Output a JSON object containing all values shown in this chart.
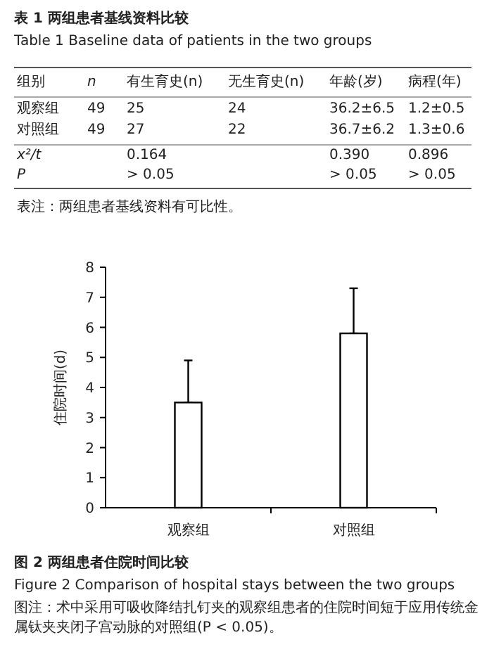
{
  "chart_data": [
    {
      "type": "other",
      "title": "表 1  两组患者基线资料比较",
      "subtitle": "Table 1  Baseline data of patients in the two groups",
      "annotations": [
        "组别",
        "n",
        "有生育史(n)",
        "无生育史(n)",
        "年龄(岁)",
        "病程(年)",
        "观察组",
        "49",
        "25",
        "24",
        "36.2±6.5",
        "1.2±0.5",
        "对照组",
        "49",
        "27",
        "22",
        "36.7±6.2",
        "1.3±0.6",
        "x²/t",
        "0.164",
        "0.390",
        "0.896",
        "P",
        "> 0.05",
        "> 0.05",
        "> 0.05",
        "表注：两组患者基线资料有可比性。"
      ]
    },
    {
      "type": "bar",
      "title": "图 2  两组患者住院时间比较",
      "subtitle": "Figure 2  Comparison of hospital stays between the two groups",
      "ylabel": "住院时间(d)",
      "categories": [
        "观察组",
        "对照组"
      ],
      "series": [
        {
          "color": "#ffffff",
          "values": [
            3.5,
            5.8
          ],
          "errors": [
            [
              3.5,
              4.9
            ],
            [
              5.8,
              7.3
            ]
          ]
        }
      ],
      "ylim": [
        0,
        8
      ],
      "yticks": [
        0,
        1,
        2,
        3,
        4,
        5,
        6,
        7,
        8
      ],
      "annotations": [
        "图注：术中采用可吸收降结扎钉夹的观察组患者的住院时间短于应用传统金属钛夹夹闭子宫动脉的对照组(P < 0.05)。"
      ]
    }
  ]
}
